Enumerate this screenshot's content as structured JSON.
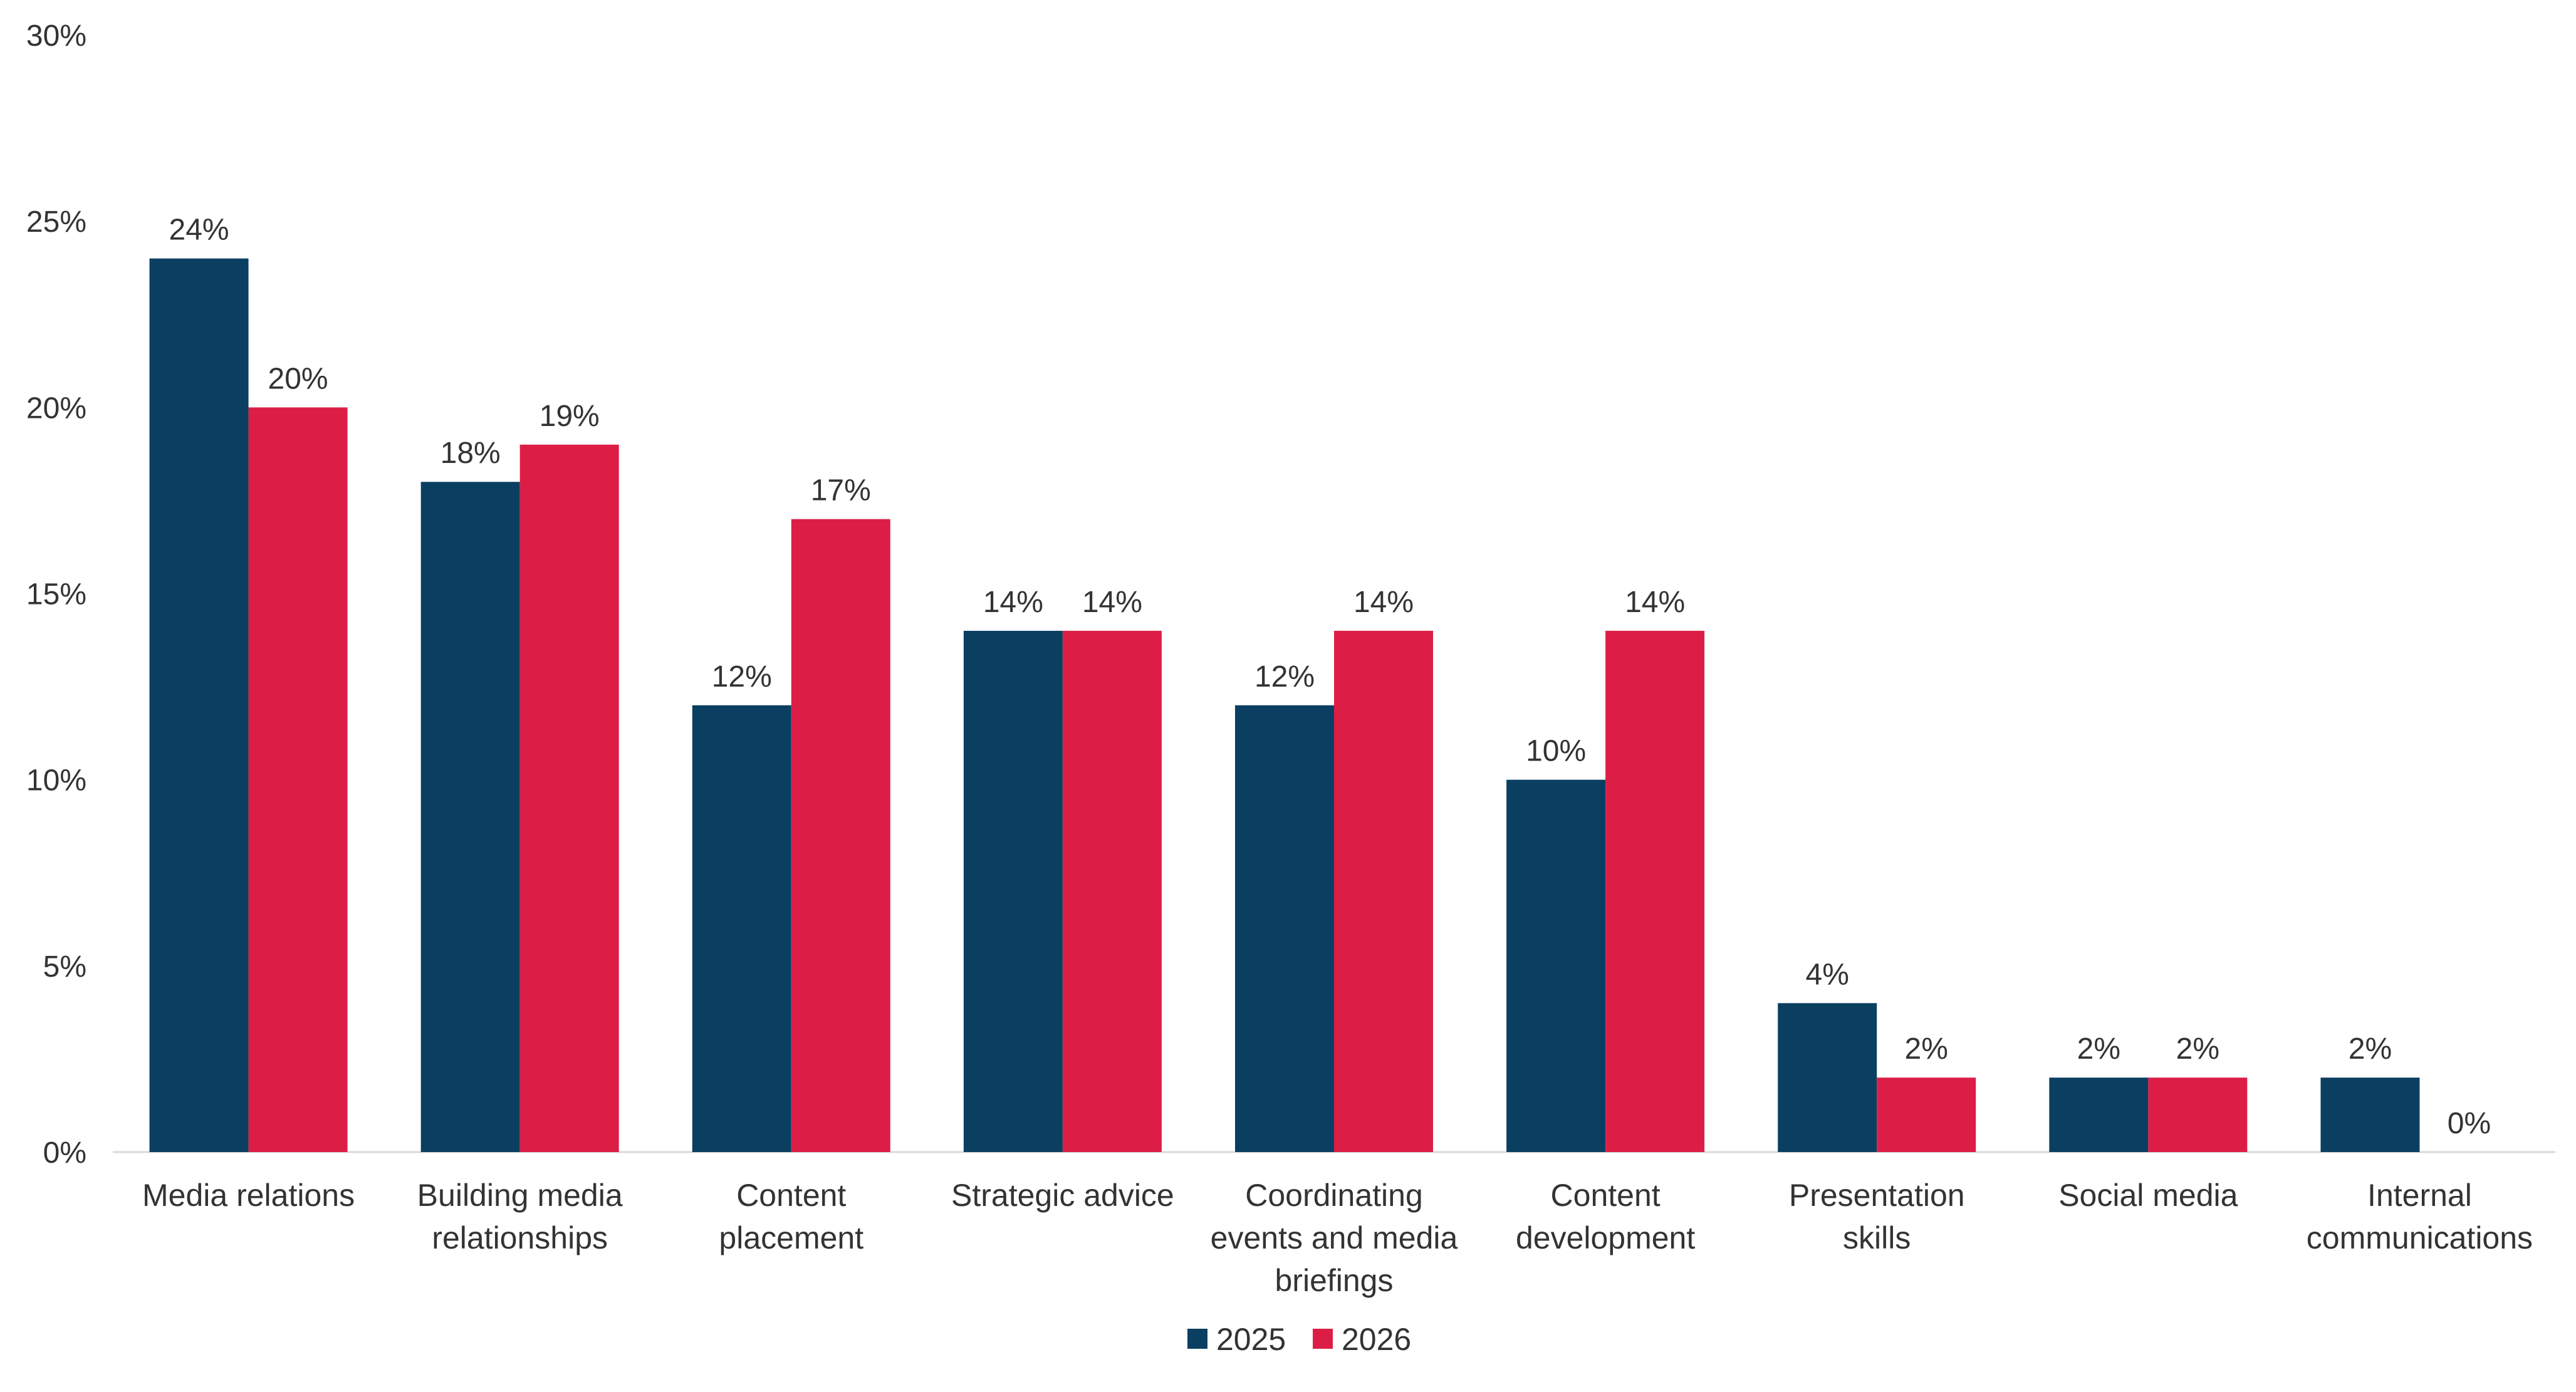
{
  "chart_data": {
    "type": "bar",
    "categories": [
      [
        "Media relations"
      ],
      [
        "Building media",
        "relationships"
      ],
      [
        "Content",
        "placement"
      ],
      [
        "Strategic advice"
      ],
      [
        "Coordinating",
        "events and media",
        "briefings"
      ],
      [
        "Content",
        "development"
      ],
      [
        "Presentation",
        "skills"
      ],
      [
        "Social media"
      ],
      [
        "Internal",
        "communications"
      ]
    ],
    "series": [
      {
        "name": "2025",
        "color": "#0B3F61",
        "values": [
          24,
          18,
          12,
          14,
          12,
          10,
          4,
          2,
          2
        ]
      },
      {
        "name": "2026",
        "color": "#DC1E46",
        "values": [
          20,
          19,
          17,
          14,
          14,
          14,
          2,
          2,
          0
        ]
      }
    ],
    "value_suffix": "%",
    "yticks": [
      0,
      5,
      10,
      15,
      20,
      25,
      30
    ],
    "ylim": [
      0,
      30
    ],
    "title": "",
    "xlabel": "",
    "ylabel": "",
    "grid": false,
    "legend_position": "bottom-center"
  }
}
